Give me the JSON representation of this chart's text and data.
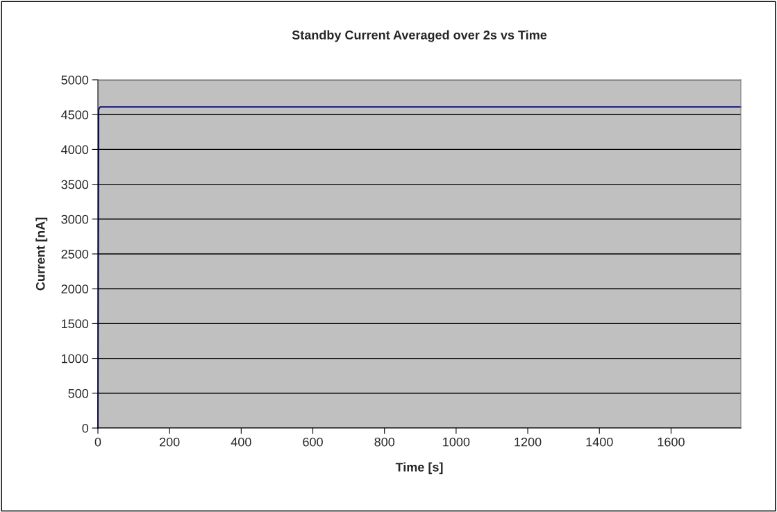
{
  "chart_data": {
    "type": "line",
    "title": "Standby Current Averaged over 2s vs Time",
    "xlabel": "Time [s]",
    "ylabel": "Current [nA]",
    "series": [
      {
        "color": "#000080",
        "x": [
          0,
          2,
          6,
          20,
          200,
          600,
          1000,
          1400,
          1795
        ],
        "values": [
          0,
          4570,
          4610,
          4610,
          4610,
          4610,
          4610,
          4610,
          4610
        ]
      }
    ],
    "xlim": [
      0,
      1795
    ],
    "xticks": [
      0,
      200,
      400,
      600,
      800,
      1000,
      1200,
      1400,
      1600
    ],
    "ylim": [
      0,
      5000
    ],
    "yticks": [
      0,
      500,
      1000,
      1500,
      2000,
      2500,
      3000,
      3500,
      4000,
      4500,
      5000
    ],
    "grid": "y",
    "legend": false,
    "marker": "none",
    "line_style": "solid"
  }
}
